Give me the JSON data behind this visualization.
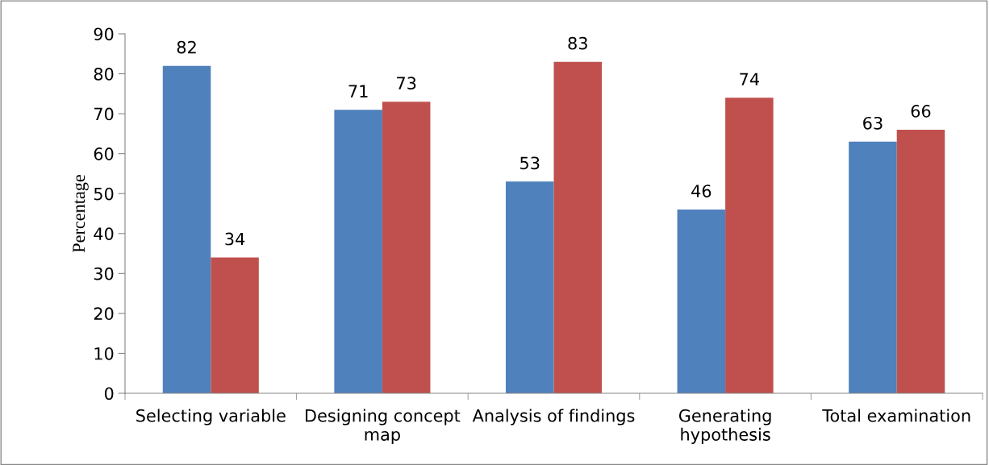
{
  "chart_data": {
    "type": "bar",
    "ylabel": "Percentage",
    "categories": [
      "Selecting variable",
      "Designing concept\nmap",
      "Analysis of findings",
      "Generating\nhypothesis",
      "Total examination"
    ],
    "series": [
      {
        "color": "#4f81bd",
        "values": [
          82,
          71,
          53,
          46,
          63
        ]
      },
      {
        "color": "#c0504d",
        "values": [
          34,
          73,
          83,
          74,
          66
        ]
      }
    ],
    "ylim": [
      0,
      90
    ],
    "yticks": [
      0,
      10,
      20,
      30,
      40,
      50,
      60,
      70,
      80,
      90
    ],
    "data_labels": true,
    "grid": false,
    "legend": false
  }
}
